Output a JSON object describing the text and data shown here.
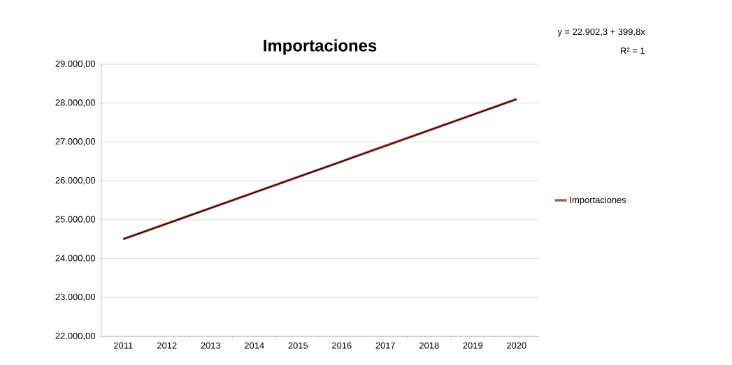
{
  "chart_data": {
    "type": "line",
    "title": "Importaciones",
    "categories": [
      "2011",
      "2012",
      "2013",
      "2014",
      "2015",
      "2016",
      "2017",
      "2018",
      "2019",
      "2020"
    ],
    "series": [
      {
        "name": "Importaciones",
        "color": "#c0504d",
        "values": [
          24500,
          24900,
          25300,
          25700,
          26100,
          26500,
          26900,
          27300,
          27700,
          28100
        ]
      },
      {
        "type": "line",
        "color": "#000000",
        "values": [
          24500,
          24900,
          25300,
          25700,
          26100,
          26500,
          26900,
          27300,
          27700,
          28100
        ]
      }
    ],
    "ylim": [
      22000,
      29000
    ],
    "yticks": [
      {
        "value": 22000,
        "label": "22.000,00"
      },
      {
        "value": 23000,
        "label": "23.000,00"
      },
      {
        "value": 24000,
        "label": "24.000,00"
      },
      {
        "value": 25000,
        "label": "25.000,00"
      },
      {
        "value": 26000,
        "label": "26.000,00"
      },
      {
        "value": 27000,
        "label": "27.000,00"
      },
      {
        "value": 28000,
        "label": "28.000,00"
      },
      {
        "value": 29000,
        "label": "29.000,00"
      }
    ],
    "grid": "y",
    "legend": "right",
    "marker": "none",
    "line_style": "solid",
    "annotations": [
      "y = 22.902,3 + 399,8x",
      "R² = 1"
    ]
  }
}
